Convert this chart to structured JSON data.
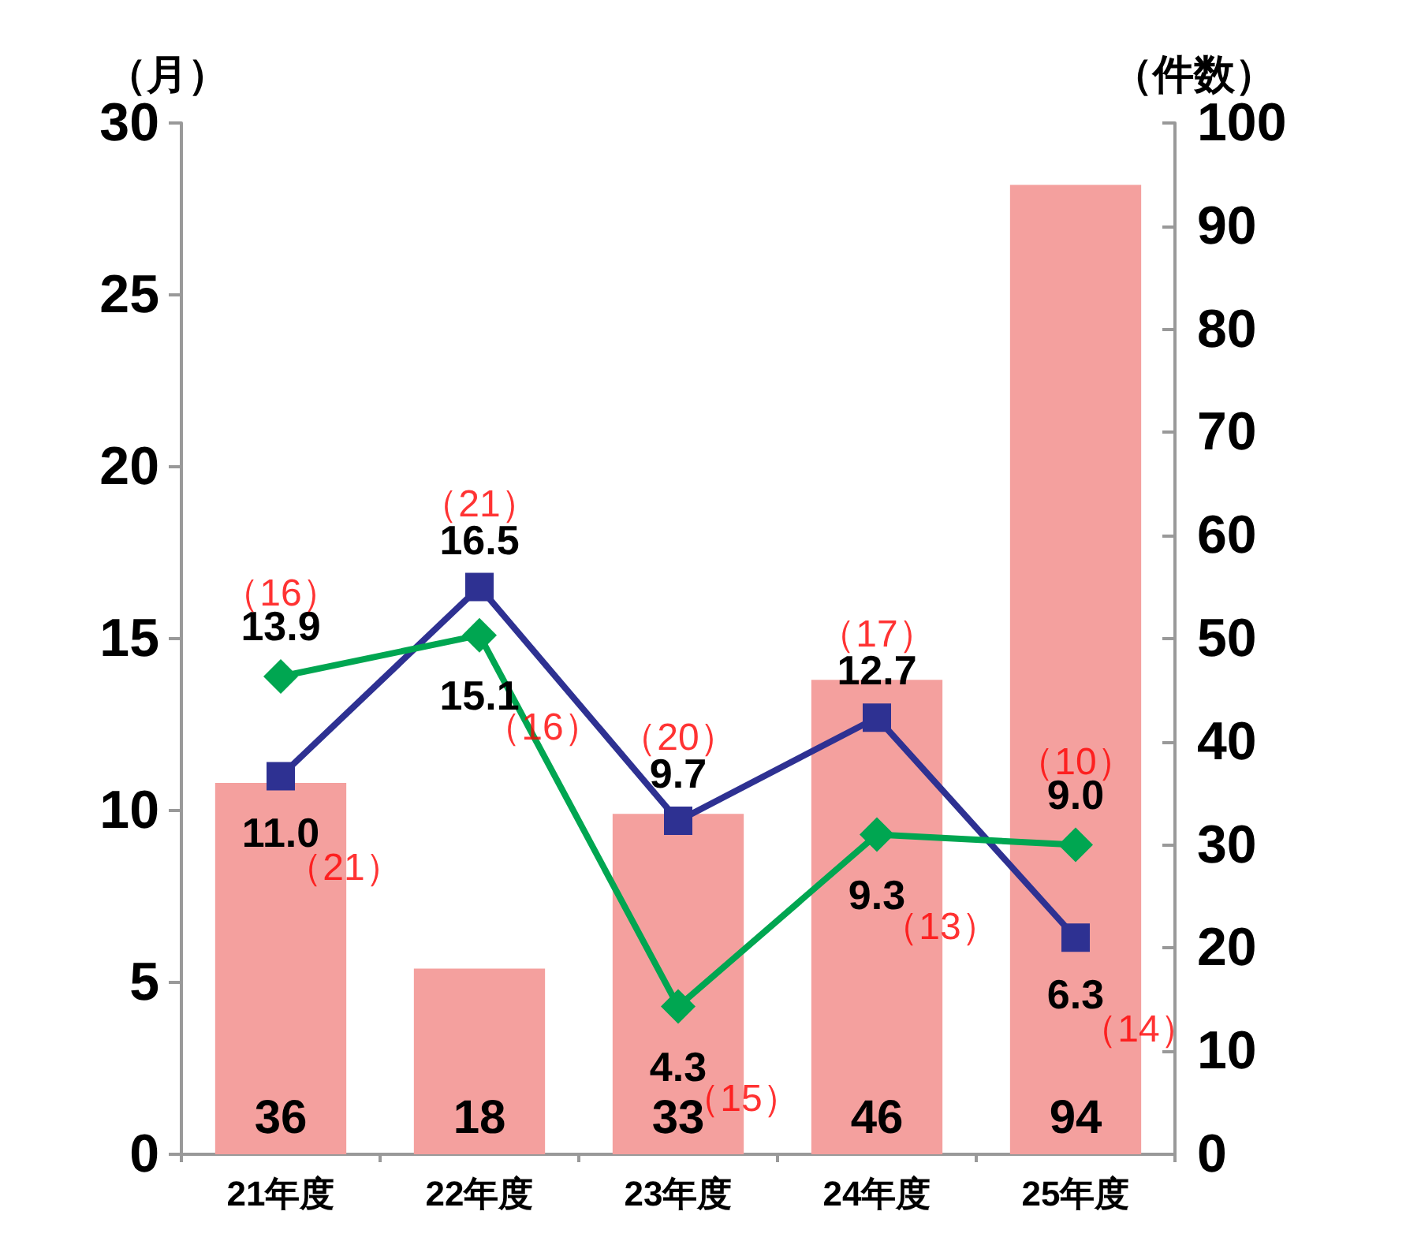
{
  "chart_data": {
    "type": "bar",
    "ylabel": "（月）",
    "y2label": "（件数）",
    "categories": [
      "21年度",
      "22年度",
      "23年度",
      "24年度",
      "25年度"
    ],
    "ylim": [
      0,
      30
    ],
    "yticks": [
      0,
      5,
      10,
      15,
      20,
      25,
      30
    ],
    "y2lim": [
      0,
      100
    ],
    "y2ticks": [
      0,
      10,
      20,
      30,
      40,
      50,
      60,
      70,
      80,
      90,
      100
    ],
    "grid": false,
    "series": [
      {
        "axis": "y2",
        "color": "#f4a09e",
        "values": [
          36,
          18,
          33,
          46,
          94
        ],
        "value_labels": [
          "36",
          "18",
          "33",
          "46",
          "94"
        ]
      },
      {
        "type": "line",
        "axis": "y",
        "color": "#2e3192",
        "marker": "square",
        "values": [
          11.0,
          16.5,
          9.7,
          12.7,
          6.3
        ],
        "value_labels": [
          "11.0",
          "16.5",
          "9.7",
          "12.7",
          "6.3"
        ]
      },
      {
        "type": "line",
        "axis": "y",
        "color": "#00a651",
        "marker": "diamond",
        "values": [
          13.9,
          15.1,
          4.3,
          9.3,
          9.0
        ],
        "value_labels": [
          "13.9",
          "15.1",
          "4.3",
          "9.3",
          "9.0"
        ]
      }
    ],
    "annotations": [
      {
        "text": "（21）",
        "x": "21年度",
        "y": 11.0
      },
      {
        "text": "（21）",
        "x": "22年度",
        "y": 16.5
      },
      {
        "text": "（20）",
        "x": "23年度",
        "y": 9.7
      },
      {
        "text": "（17）",
        "x": "24年度",
        "y": 12.7
      },
      {
        "text": "（14）",
        "x": "25年度",
        "y": 6.3
      },
      {
        "text": "（16）",
        "x": "21年度",
        "y": 13.9
      },
      {
        "text": "（16）",
        "x": "22年度",
        "y": 15.1
      },
      {
        "text": "（15）",
        "x": "23年度",
        "y": 4.3
      },
      {
        "text": "（13）",
        "x": "24年度",
        "y": 9.3
      },
      {
        "text": "（10）",
        "x": "25年度",
        "y": 9.0
      }
    ]
  }
}
